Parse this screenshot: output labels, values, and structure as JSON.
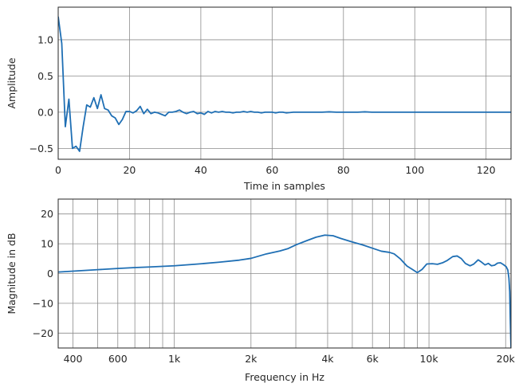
{
  "chart_data": [
    {
      "type": "line",
      "title": "",
      "xlabel": "Time in samples",
      "ylabel": "Amplitude",
      "xlim": [
        0,
        127
      ],
      "ylim": [
        -0.65,
        1.45
      ],
      "xscale": "linear",
      "grid": true,
      "x_ticks": [
        0,
        20,
        40,
        60,
        80,
        100,
        120
      ],
      "x_tick_labels": [
        "0",
        "20",
        "40",
        "60",
        "80",
        "100",
        "120"
      ],
      "y_ticks": [
        -0.5,
        0.0,
        0.5,
        1.0
      ],
      "y_tick_labels": [
        "−0.5",
        "0.0",
        "0.5",
        "1.0"
      ],
      "series": [
        {
          "color": "#1f6fb4",
          "points": [
            [
              0,
              1.32
            ],
            [
              1,
              0.95
            ],
            [
              2,
              -0.2
            ],
            [
              3,
              0.18
            ],
            [
              4,
              -0.5
            ],
            [
              5,
              -0.47
            ],
            [
              6,
              -0.54
            ],
            [
              7,
              -0.2
            ],
            [
              8,
              0.1
            ],
            [
              9,
              0.07
            ],
            [
              10,
              0.2
            ],
            [
              11,
              0.05
            ],
            [
              12,
              0.24
            ],
            [
              13,
              0.05
            ],
            [
              14,
              0.03
            ],
            [
              15,
              -0.05
            ],
            [
              16,
              -0.08
            ],
            [
              17,
              -0.17
            ],
            [
              18,
              -0.1
            ],
            [
              19,
              0.01
            ],
            [
              20,
              0.01
            ],
            [
              21,
              -0.01
            ],
            [
              22,
              0.02
            ],
            [
              23,
              0.08
            ],
            [
              24,
              -0.02
            ],
            [
              25,
              0.04
            ],
            [
              26,
              -0.02
            ],
            [
              27,
              0.0
            ],
            [
              28,
              -0.01
            ],
            [
              29,
              -0.03
            ],
            [
              30,
              -0.05
            ],
            [
              31,
              0.0
            ],
            [
              32,
              0.0
            ],
            [
              33,
              0.01
            ],
            [
              34,
              0.03
            ],
            [
              35,
              0.0
            ],
            [
              36,
              -0.02
            ],
            [
              37,
              0.0
            ],
            [
              38,
              0.01
            ],
            [
              39,
              -0.02
            ],
            [
              40,
              -0.01
            ],
            [
              41,
              -0.03
            ],
            [
              42,
              0.01
            ],
            [
              43,
              -0.01
            ],
            [
              44,
              0.01
            ],
            [
              45,
              0.0
            ],
            [
              46,
              0.01
            ],
            [
              47,
              0.0
            ],
            [
              48,
              0.0
            ],
            [
              49,
              -0.01
            ],
            [
              50,
              0.0
            ],
            [
              51,
              0.0
            ],
            [
              52,
              0.01
            ],
            [
              53,
              0.0
            ],
            [
              54,
              0.01
            ],
            [
              55,
              0.0
            ],
            [
              56,
              0.0
            ],
            [
              57,
              -0.01
            ],
            [
              58,
              0.0
            ],
            [
              59,
              0.0
            ],
            [
              60,
              0.0
            ],
            [
              61,
              -0.01
            ],
            [
              62,
              0.0
            ],
            [
              63,
              0.0
            ],
            [
              64,
              -0.01
            ],
            [
              66,
              0.0
            ],
            [
              68,
              0.0
            ],
            [
              70,
              0.0
            ],
            [
              72,
              0.0
            ],
            [
              74,
              0.0
            ],
            [
              76,
              0.005
            ],
            [
              78,
              0.0
            ],
            [
              80,
              0.0
            ],
            [
              82,
              0.0
            ],
            [
              84,
              0.0
            ],
            [
              86,
              0.005
            ],
            [
              88,
              0.0
            ],
            [
              90,
              0.0
            ],
            [
              95,
              0.0
            ],
            [
              100,
              0.0
            ],
            [
              105,
              0.0
            ],
            [
              110,
              0.0
            ],
            [
              115,
              0.0
            ],
            [
              120,
              0.0
            ],
            [
              127,
              0.0
            ]
          ]
        }
      ]
    },
    {
      "type": "line",
      "title": "",
      "xlabel": "Frequency in Hz",
      "ylabel": "Magnitude in dB",
      "xlim": [
        350,
        21000
      ],
      "ylim": [
        -25,
        25
      ],
      "xscale": "log",
      "grid": true,
      "x_ticks": [
        400,
        600,
        1000,
        2000,
        4000,
        6000,
        10000,
        20000
      ],
      "x_tick_labels": [
        "400",
        "600",
        "1k",
        "2k",
        "4k",
        "6k",
        "10k",
        "20k"
      ],
      "x_minor_grid": [
        400,
        500,
        600,
        700,
        800,
        900,
        1000,
        2000,
        3000,
        4000,
        5000,
        6000,
        7000,
        8000,
        9000,
        10000,
        20000
      ],
      "y_ticks": [
        -20,
        -10,
        0,
        10,
        20
      ],
      "y_tick_labels": [
        "−20",
        "−10",
        "0",
        "10",
        "20"
      ],
      "series": [
        {
          "color": "#1f6fb4",
          "points": [
            [
              350,
              0.5
            ],
            [
              400,
              0.8
            ],
            [
              500,
              1.3
            ],
            [
              600,
              1.7
            ],
            [
              700,
              2.0
            ],
            [
              800,
              2.2
            ],
            [
              1000,
              2.6
            ],
            [
              1200,
              3.1
            ],
            [
              1500,
              3.8
            ],
            [
              1800,
              4.5
            ],
            [
              2000,
              5.1
            ],
            [
              2300,
              6.6
            ],
            [
              2600,
              7.6
            ],
            [
              2800,
              8.4
            ],
            [
              3000,
              9.6
            ],
            [
              3300,
              11.0
            ],
            [
              3600,
              12.2
            ],
            [
              3900,
              12.9
            ],
            [
              4200,
              12.7
            ],
            [
              4500,
              11.8
            ],
            [
              5000,
              10.6
            ],
            [
              5500,
              9.6
            ],
            [
              6000,
              8.5
            ],
            [
              6500,
              7.5
            ],
            [
              7000,
              7.1
            ],
            [
              7300,
              6.6
            ],
            [
              7700,
              5.0
            ],
            [
              8200,
              2.5
            ],
            [
              8600,
              1.4
            ],
            [
              9000,
              0.3
            ],
            [
              9400,
              1.4
            ],
            [
              9800,
              3.2
            ],
            [
              10300,
              3.3
            ],
            [
              10800,
              3.1
            ],
            [
              11300,
              3.6
            ],
            [
              11800,
              4.4
            ],
            [
              12400,
              5.7
            ],
            [
              12900,
              5.9
            ],
            [
              13400,
              5.0
            ],
            [
              13900,
              3.4
            ],
            [
              14500,
              2.6
            ],
            [
              15000,
              3.2
            ],
            [
              15600,
              4.6
            ],
            [
              16100,
              3.8
            ],
            [
              16600,
              2.9
            ],
            [
              17100,
              3.4
            ],
            [
              17600,
              2.6
            ],
            [
              18100,
              2.8
            ],
            [
              18600,
              3.5
            ],
            [
              19100,
              3.6
            ],
            [
              19600,
              3.0
            ],
            [
              20100,
              2.3
            ],
            [
              20400,
              1.2
            ],
            [
              20600,
              -1.5
            ],
            [
              20750,
              -6.0
            ],
            [
              20850,
              -15.0
            ],
            [
              20950,
              -22.0
            ],
            [
              21000,
              -25.0
            ]
          ]
        }
      ]
    }
  ]
}
